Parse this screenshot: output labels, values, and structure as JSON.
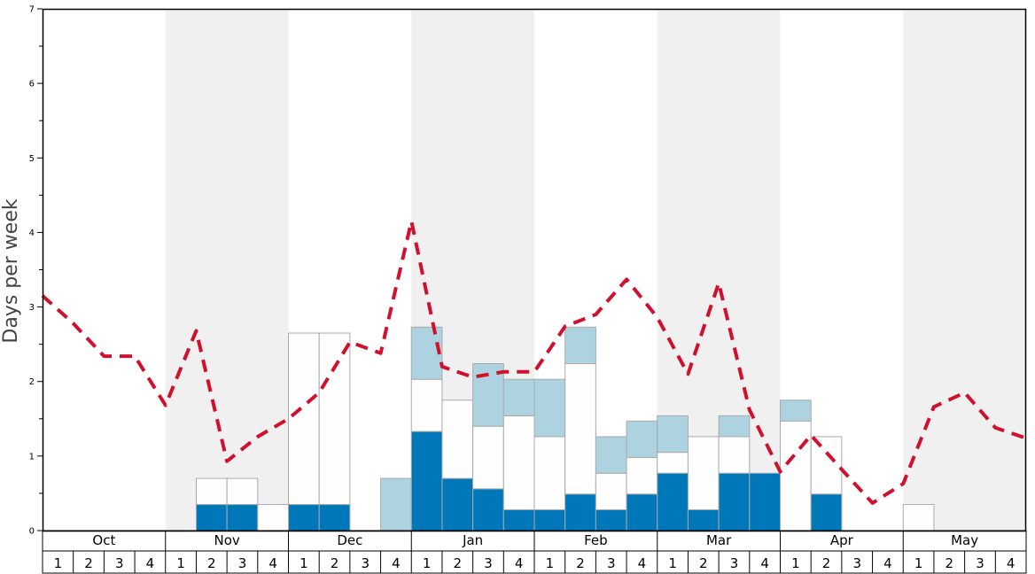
{
  "chart_data": {
    "type": "bar",
    "ylabel": "Days per week",
    "ylim": [
      0,
      7
    ],
    "y_ticks": [
      "0",
      "1",
      "2",
      "3",
      "4",
      "5",
      "6",
      "7"
    ],
    "months": [
      "Oct",
      "Nov",
      "Dec",
      "Jan",
      "Feb",
      "Mar",
      "Apr",
      "May"
    ],
    "weeks": [
      "1",
      "2",
      "3",
      "4"
    ],
    "bars": [
      {
        "month": "Oct",
        "week": "1",
        "dark": 0,
        "white": 0,
        "light": 0
      },
      {
        "month": "Oct",
        "week": "2",
        "dark": 0,
        "white": 0,
        "light": 0
      },
      {
        "month": "Oct",
        "week": "3",
        "dark": 0,
        "white": 0,
        "light": 0
      },
      {
        "month": "Oct",
        "week": "4",
        "dark": 0,
        "white": 0,
        "light": 0
      },
      {
        "month": "Nov",
        "week": "1",
        "dark": 0,
        "white": 0,
        "light": 0
      },
      {
        "month": "Nov",
        "week": "2",
        "dark": 0.35,
        "white": 0.35,
        "light": 0
      },
      {
        "month": "Nov",
        "week": "3",
        "dark": 0.35,
        "white": 0.35,
        "light": 0
      },
      {
        "month": "Nov",
        "week": "4",
        "dark": 0,
        "white": 0.35,
        "light": 0
      },
      {
        "month": "Dec",
        "week": "1",
        "dark": 0.35,
        "white": 2.3,
        "light": 0
      },
      {
        "month": "Dec",
        "week": "2",
        "dark": 0.35,
        "white": 2.3,
        "light": 0
      },
      {
        "month": "Dec",
        "week": "3",
        "dark": 0,
        "white": 0,
        "light": 0
      },
      {
        "month": "Dec",
        "week": "4",
        "dark": 0,
        "white": 0,
        "light": 0.7
      },
      {
        "month": "Jan",
        "week": "1",
        "dark": 1.33,
        "white": 0.7,
        "light": 0.7
      },
      {
        "month": "Jan",
        "week": "2",
        "dark": 0.7,
        "white": 1.05,
        "light": 0
      },
      {
        "month": "Jan",
        "week": "3",
        "dark": 0.56,
        "white": 0.84,
        "light": 0.84
      },
      {
        "month": "Jan",
        "week": "4",
        "dark": 0.28,
        "white": 1.26,
        "light": 0.49
      },
      {
        "month": "Feb",
        "week": "1",
        "dark": 0.28,
        "white": 0.98,
        "light": 0.77
      },
      {
        "month": "Feb",
        "week": "2",
        "dark": 0.49,
        "white": 1.75,
        "light": 0.49
      },
      {
        "month": "Feb",
        "week": "3",
        "dark": 0.28,
        "white": 0.49,
        "light": 0.49
      },
      {
        "month": "Feb",
        "week": "4",
        "dark": 0.49,
        "white": 0.49,
        "light": 0.49
      },
      {
        "month": "Mar",
        "week": "1",
        "dark": 0.77,
        "white": 0.28,
        "light": 0.49
      },
      {
        "month": "Mar",
        "week": "2",
        "dark": 0.28,
        "white": 0.98,
        "light": 0
      },
      {
        "month": "Mar",
        "week": "3",
        "dark": 0.77,
        "white": 0.49,
        "light": 0.28
      },
      {
        "month": "Mar",
        "week": "4",
        "dark": 0.77,
        "white": 0,
        "light": 0
      },
      {
        "month": "Apr",
        "week": "1",
        "dark": 0,
        "white": 1.47,
        "light": 0.28
      },
      {
        "month": "Apr",
        "week": "2",
        "dark": 0.49,
        "white": 0.77,
        "light": 0
      },
      {
        "month": "Apr",
        "week": "3",
        "dark": 0,
        "white": 0,
        "light": 0
      },
      {
        "month": "Apr",
        "week": "4",
        "dark": 0,
        "white": 0,
        "light": 0
      },
      {
        "month": "May",
        "week": "1",
        "dark": 0,
        "white": 0.35,
        "light": 0
      },
      {
        "month": "May",
        "week": "2",
        "dark": 0,
        "white": 0,
        "light": 0
      },
      {
        "month": "May",
        "week": "3",
        "dark": 0,
        "white": 0,
        "light": 0
      },
      {
        "month": "May",
        "week": "4",
        "dark": 0,
        "white": 0,
        "light": 0
      }
    ],
    "average_line": [
      3.15,
      2.78,
      2.34,
      2.34,
      1.68,
      2.68,
      0.93,
      1.26,
      1.5,
      1.85,
      2.53,
      2.38,
      4.15,
      2.2,
      2.06,
      2.13,
      2.13,
      2.74,
      2.9,
      3.37,
      2.86,
      2.1,
      3.32,
      1.62,
      0.79,
      1.28,
      0.82,
      0.37,
      0.63,
      1.66,
      1.85,
      1.38,
      1.24
    ],
    "colors": {
      "dark": "#0077b8",
      "light": "#acd3df",
      "white": "#fefefe",
      "bar_stroke": "#aaaaaa",
      "line": "#d1102e",
      "band": "#f0f0f0"
    }
  }
}
